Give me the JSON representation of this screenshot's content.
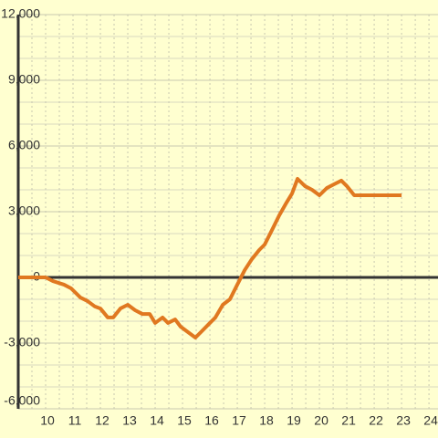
{
  "chart_data": {
    "type": "line",
    "x": [
      9,
      10,
      10.27,
      10.67,
      10.93,
      11.27,
      11.53,
      11.8,
      12,
      12.27,
      12.47,
      12.73,
      13,
      13.27,
      13.53,
      13.8,
      14,
      14.27,
      14.47,
      14.73,
      14.93,
      15.2,
      15.47,
      15.67,
      15.93,
      16.2,
      16.47,
      16.73,
      17,
      17.27,
      17.53,
      17.8,
      18,
      18.27,
      18.53,
      18.8,
      19,
      19.2,
      19.47,
      19.73,
      20,
      20.27,
      20.53,
      20.8,
      21,
      21.27,
      23
    ],
    "values": [
      0,
      0,
      -170,
      -330,
      -500,
      -920,
      -1080,
      -1330,
      -1420,
      -1830,
      -1830,
      -1420,
      -1250,
      -1500,
      -1670,
      -1670,
      -2080,
      -1830,
      -2080,
      -1920,
      -2250,
      -2500,
      -2750,
      -2500,
      -2170,
      -1830,
      -1250,
      -1000,
      -330,
      330,
      830,
      1250,
      1500,
      2170,
      2830,
      3420,
      3830,
      4500,
      4170,
      4000,
      3750,
      4080,
      4250,
      4420,
      4170,
      3750,
      3750
    ],
    "color": "#e07820",
    "xlim": [
      9,
      24.33
    ],
    "ylim": [
      -6000,
      12000
    ],
    "xticks": [
      10,
      11,
      12,
      13,
      14,
      15,
      16,
      17,
      18,
      19,
      20,
      21,
      22,
      23,
      24
    ],
    "xminorticks": [
      9.5,
      10.5,
      11.5,
      12.5,
      13.5,
      14.5,
      15.5,
      16.5,
      17.5,
      18.5,
      19.5,
      20.5,
      21.5,
      22.5,
      23.5
    ],
    "yticks": [
      {
        "value": -6000,
        "label": "-6,000"
      },
      {
        "value": -3000,
        "label": "-3,000"
      },
      0,
      {
        "value": 3000,
        "label": "3,000"
      },
      {
        "value": 6000,
        "label": "6,000"
      },
      {
        "value": 9000,
        "label": "9,000"
      },
      {
        "value": 12000,
        "label": "12,000"
      }
    ],
    "yminorticks": [
      -5000,
      -4000,
      -2000,
      -1000,
      1000,
      2000,
      4000,
      5000,
      7000,
      8000,
      10000,
      11000
    ],
    "grid": true
  }
}
